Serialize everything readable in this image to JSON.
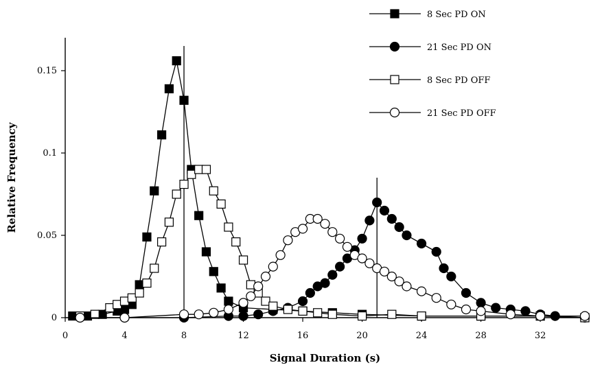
{
  "chart_data": {
    "type": "line",
    "title": "",
    "xlabel": "Signal Duration (s)",
    "ylabel": "Relative Frequency",
    "xlim": [
      0,
      35
    ],
    "ylim": [
      0,
      0.17
    ],
    "grid": false,
    "legend_position": "top-right",
    "x_ticks": [
      "0",
      "4",
      "8",
      "12",
      "16",
      "20",
      "24",
      "28",
      "32"
    ],
    "y_ticks": [
      "0",
      "0.05",
      "0.1",
      "0.15"
    ],
    "reference_lines_x": [
      8,
      21
    ],
    "series": [
      {
        "name": "8 Sec PD ON",
        "marker": "square-filled",
        "points": [
          [
            0.5,
            0.001
          ],
          [
            1.5,
            0.001
          ],
          [
            2.5,
            0.002
          ],
          [
            3.5,
            0.004
          ],
          [
            4,
            0.005
          ],
          [
            4.5,
            0.008
          ],
          [
            5,
            0.02
          ],
          [
            5.5,
            0.049
          ],
          [
            6,
            0.077
          ],
          [
            6.5,
            0.111
          ],
          [
            7,
            0.139
          ],
          [
            7.5,
            0.156
          ],
          [
            8,
            0.132
          ],
          [
            8.5,
            0.09
          ],
          [
            9,
            0.062
          ],
          [
            9.5,
            0.04
          ],
          [
            10,
            0.028
          ],
          [
            10.5,
            0.018
          ],
          [
            11,
            0.01
          ],
          [
            12,
            0.006
          ],
          [
            14,
            0.005
          ],
          [
            16,
            0.004
          ],
          [
            18,
            0.003
          ],
          [
            20,
            0.002
          ],
          [
            24,
            0.001
          ],
          [
            28,
            0.001
          ],
          [
            32,
            0.001
          ],
          [
            35,
            0
          ]
        ]
      },
      {
        "name": "21 Sec PD ON",
        "marker": "circle-filled",
        "points": [
          [
            1,
            0
          ],
          [
            4,
            0
          ],
          [
            8,
            0
          ],
          [
            11,
            0.001
          ],
          [
            12,
            0.001
          ],
          [
            13,
            0.002
          ],
          [
            14,
            0.004
          ],
          [
            15,
            0.006
          ],
          [
            16,
            0.01
          ],
          [
            16.5,
            0.015
          ],
          [
            17,
            0.019
          ],
          [
            17.5,
            0.021
          ],
          [
            18,
            0.026
          ],
          [
            18.5,
            0.031
          ],
          [
            19,
            0.036
          ],
          [
            19.5,
            0.041
          ],
          [
            20,
            0.048
          ],
          [
            20.5,
            0.059
          ],
          [
            21,
            0.07
          ],
          [
            21.5,
            0.065
          ],
          [
            22,
            0.06
          ],
          [
            22.5,
            0.055
          ],
          [
            23,
            0.05
          ],
          [
            24,
            0.045
          ],
          [
            25,
            0.04
          ],
          [
            25.5,
            0.03
          ],
          [
            26,
            0.025
          ],
          [
            27,
            0.015
          ],
          [
            28,
            0.009
          ],
          [
            29,
            0.006
          ],
          [
            30,
            0.005
          ],
          [
            31,
            0.004
          ],
          [
            32,
            0.002
          ],
          [
            33,
            0.001
          ],
          [
            35,
            0
          ]
        ]
      },
      {
        "name": "8 Sec PD OFF",
        "marker": "square-open",
        "points": [
          [
            1,
            0.001
          ],
          [
            2,
            0.002
          ],
          [
            3,
            0.006
          ],
          [
            3.5,
            0.008
          ],
          [
            4,
            0.01
          ],
          [
            4.5,
            0.012
          ],
          [
            5,
            0.015
          ],
          [
            5.5,
            0.021
          ],
          [
            6,
            0.03
          ],
          [
            6.5,
            0.046
          ],
          [
            7,
            0.058
          ],
          [
            7.5,
            0.075
          ],
          [
            8,
            0.081
          ],
          [
            8.5,
            0.087
          ],
          [
            9,
            0.09
          ],
          [
            9.5,
            0.09
          ],
          [
            10,
            0.077
          ],
          [
            10.5,
            0.069
          ],
          [
            11,
            0.055
          ],
          [
            11.5,
            0.046
          ],
          [
            12,
            0.035
          ],
          [
            12.5,
            0.02
          ],
          [
            13,
            0.015
          ],
          [
            13.5,
            0.01
          ],
          [
            14,
            0.007
          ],
          [
            15,
            0.005
          ],
          [
            16,
            0.004
          ],
          [
            17,
            0.003
          ],
          [
            18,
            0.002
          ],
          [
            20,
            0.001
          ],
          [
            22,
            0.002
          ],
          [
            24,
            0.001
          ],
          [
            28,
            0.001
          ],
          [
            32,
            0.001
          ],
          [
            35,
            0
          ]
        ]
      },
      {
        "name": "21 Sec PD OFF",
        "marker": "circle-open",
        "points": [
          [
            1,
            0
          ],
          [
            4,
            0
          ],
          [
            8,
            0.002
          ],
          [
            9,
            0.002
          ],
          [
            10,
            0.003
          ],
          [
            11,
            0.005
          ],
          [
            12,
            0.009
          ],
          [
            12.5,
            0.013
          ],
          [
            13,
            0.019
          ],
          [
            13.5,
            0.025
          ],
          [
            14,
            0.031
          ],
          [
            14.5,
            0.038
          ],
          [
            15,
            0.047
          ],
          [
            15.5,
            0.052
          ],
          [
            16,
            0.054
          ],
          [
            16.5,
            0.06
          ],
          [
            17,
            0.06
          ],
          [
            17.5,
            0.057
          ],
          [
            18,
            0.052
          ],
          [
            18.5,
            0.048
          ],
          [
            19,
            0.043
          ],
          [
            19.5,
            0.038
          ],
          [
            20,
            0.036
          ],
          [
            20.5,
            0.033
          ],
          [
            21,
            0.03
          ],
          [
            21.5,
            0.028
          ],
          [
            22,
            0.025
          ],
          [
            22.5,
            0.022
          ],
          [
            23,
            0.019
          ],
          [
            24,
            0.016
          ],
          [
            25,
            0.012
          ],
          [
            26,
            0.008
          ],
          [
            27,
            0.005
          ],
          [
            28,
            0.004
          ],
          [
            30,
            0.002
          ],
          [
            32,
            0.001
          ],
          [
            35,
            0.001
          ]
        ]
      }
    ]
  }
}
